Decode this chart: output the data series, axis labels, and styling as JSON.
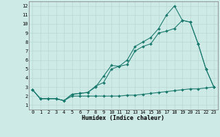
{
  "xlabel": "Humidex (Indice chaleur)",
  "ylabel": "",
  "bg_color": "#ceeae6",
  "line_color": "#1a7a6e",
  "grid_color": "#b8d8d4",
  "xlim": [
    -0.5,
    23.5
  ],
  "ylim": [
    0.5,
    12.5
  ],
  "xticks": [
    0,
    1,
    2,
    3,
    4,
    5,
    6,
    7,
    8,
    9,
    10,
    11,
    12,
    13,
    14,
    15,
    16,
    17,
    18,
    19,
    20,
    21,
    22,
    23
  ],
  "yticks": [
    1,
    2,
    3,
    4,
    5,
    6,
    7,
    8,
    9,
    10,
    11,
    12
  ],
  "line1_x": [
    0,
    1,
    2,
    3,
    4,
    5,
    6,
    7,
    8,
    9,
    10,
    11,
    12,
    13,
    14,
    15,
    16,
    17,
    18,
    19,
    20,
    21,
    22,
    23
  ],
  "line1_y": [
    2.7,
    1.7,
    1.7,
    1.7,
    1.5,
    2.2,
    2.3,
    2.4,
    3.0,
    4.2,
    5.4,
    5.3,
    6.0,
    7.5,
    8.0,
    8.5,
    9.5,
    11.0,
    12.0,
    10.4,
    10.2,
    7.8,
    5.0,
    3.0
  ],
  "line2_x": [
    0,
    1,
    2,
    3,
    4,
    5,
    6,
    7,
    8,
    9,
    10,
    11,
    12,
    13,
    14,
    15,
    16,
    17,
    18,
    19,
    20,
    21,
    22,
    23
  ],
  "line2_y": [
    2.7,
    1.7,
    1.7,
    1.7,
    1.5,
    2.2,
    2.3,
    2.4,
    3.1,
    3.5,
    5.0,
    5.3,
    5.5,
    7.0,
    7.5,
    7.8,
    9.0,
    9.2,
    9.5,
    10.4,
    10.2,
    7.8,
    5.0,
    3.0
  ],
  "line3_x": [
    0,
    1,
    2,
    3,
    4,
    5,
    6,
    7,
    8,
    9,
    10,
    11,
    12,
    13,
    14,
    15,
    16,
    17,
    18,
    19,
    20,
    21,
    22,
    23
  ],
  "line3_y": [
    2.7,
    1.7,
    1.7,
    1.7,
    1.5,
    2.0,
    2.0,
    2.0,
    2.0,
    2.0,
    2.0,
    2.0,
    2.1,
    2.1,
    2.2,
    2.3,
    2.4,
    2.5,
    2.6,
    2.7,
    2.8,
    2.8,
    2.9,
    3.0
  ],
  "marker": "D",
  "markersize": 2.0,
  "linewidth": 0.8,
  "font_size_tick": 5.0,
  "font_size_label": 6.0
}
